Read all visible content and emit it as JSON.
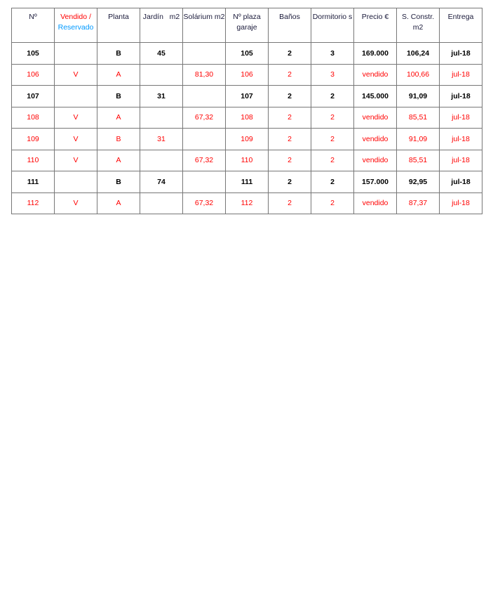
{
  "headers": [
    "Nº",
    "Vendido /",
    "Reservado",
    "Planta",
    "Jardín   m2",
    "Solárium m2",
    "Nº plaza garaje",
    "Baños",
    "Dormitorio s",
    "Precio €",
    "S. Constr. m2",
    "Entrega"
  ],
  "colors": {
    "sold": "#ff0000",
    "reserved_label": "#0099ff",
    "available": "#000000"
  },
  "rows": [
    [
      "105",
      "",
      "B",
      "45",
      "",
      "105",
      "2",
      "3",
      "169.000",
      "106,24",
      "jul-18"
    ],
    [
      "106",
      "V",
      "A",
      "",
      "81,30",
      "106",
      "2",
      "3",
      "vendido",
      "100,66",
      "jul-18"
    ],
    [
      "107",
      "",
      "B",
      "31",
      "",
      "107",
      "2",
      "2",
      "145.000",
      "91,09",
      "jul-18"
    ],
    [
      "108",
      "V",
      "A",
      "",
      "67,32",
      "108",
      "2",
      "2",
      "vendido",
      "85,51",
      "jul-18"
    ],
    [
      "109",
      "V",
      "B",
      "31",
      "",
      "109",
      "2",
      "2",
      "vendido",
      "91,09",
      "jul-18"
    ],
    [
      "110",
      "V",
      "A",
      "",
      "67,32",
      "110",
      "2",
      "2",
      "vendido",
      "85,51",
      "jul-18"
    ],
    [
      "111",
      "",
      "B",
      "74",
      "",
      "111",
      "2",
      "2",
      "157.000",
      "92,95",
      "jul-18"
    ],
    [
      "112",
      "V",
      "A",
      "",
      "67,32",
      "112",
      "2",
      "2",
      "vendido",
      "87,37",
      "jul-18"
    ]
  ]
}
